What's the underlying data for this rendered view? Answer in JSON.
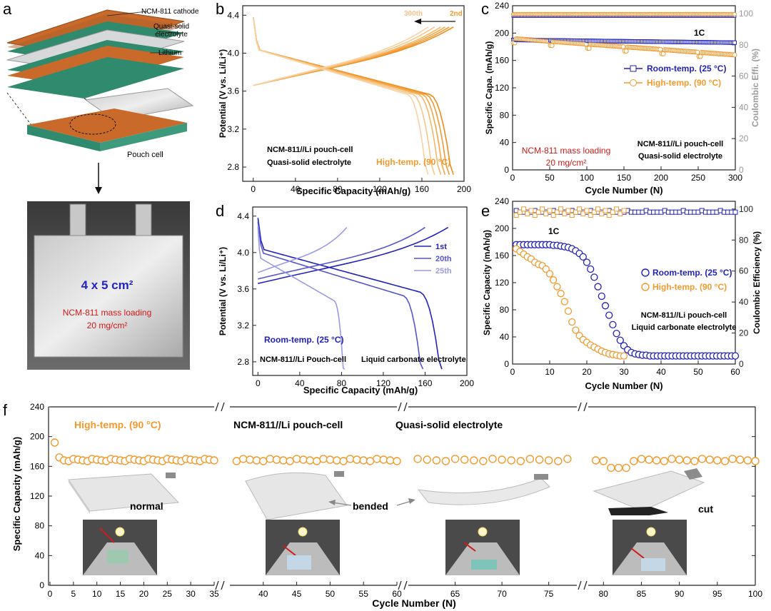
{
  "colors": {
    "orange": "#f39a2e",
    "orange_light": "#f6c28a",
    "blue": "#2222bb",
    "blue_mid": "#5555cc",
    "blue_light": "#9a9ae6",
    "red": "#d11a1a",
    "grey": "#9a9a9a",
    "axis": "#222222"
  },
  "panel_a": {
    "letter": "a",
    "layers": [
      "NCM-811 cathode",
      "Quasi-solid electrolyte",
      "Lithium"
    ],
    "pouch_label": "Pouch cell",
    "photo_size": "4 x 5 cm²",
    "photo_loading_1": "NCM-811 mass loading",
    "photo_loading_2": "20 mg/cm²"
  },
  "panel_f_text": {
    "states": [
      "normal",
      "bended",
      "cut"
    ]
  },
  "chart_data": [
    {
      "id": "b",
      "letter": "b",
      "type": "line",
      "title": "",
      "xlabel": "Specific Capacity (mAh/g)",
      "ylabel": "Potential (V vs. Li/Li⁺)",
      "xlim": [
        -10,
        200
      ],
      "ylim": [
        2.65,
        4.5
      ],
      "xticks": [
        0,
        40,
        80,
        120,
        160,
        200
      ],
      "yticks": [
        2.8,
        3.2,
        3.6,
        4.0,
        4.4
      ],
      "legend": [
        "300th",
        "2nd"
      ],
      "annotations": [
        "NCM-811//Li pouch-cell",
        "Quasi-solid electrolyte",
        "High-temp. (90 °C)"
      ],
      "series": [
        {
          "name": "2nd",
          "charge_capacity": 190,
          "discharge_capacity": 190
        },
        {
          "name": "cycle",
          "charge_capacity": 186,
          "discharge_capacity": 186
        },
        {
          "name": "cycle",
          "charge_capacity": 182,
          "discharge_capacity": 182
        },
        {
          "name": "cycle",
          "charge_capacity": 178,
          "discharge_capacity": 178
        },
        {
          "name": "cycle",
          "charge_capacity": 172,
          "discharge_capacity": 172
        },
        {
          "name": "300th",
          "charge_capacity": 166,
          "discharge_capacity": 166
        }
      ]
    },
    {
      "id": "c",
      "letter": "c",
      "type": "scatter",
      "xlabel": "Cycle Number (N)",
      "ylabel": "Specific Capa. (mAh/g)",
      "y2label": "Coulombic Effi. (%)",
      "xlim": [
        0,
        300
      ],
      "ylim": [
        0,
        240
      ],
      "y2lim": [
        0,
        105
      ],
      "xticks": [
        0,
        50,
        100,
        150,
        200,
        250,
        300
      ],
      "yticks": [
        0,
        40,
        80,
        120,
        160,
        200,
        240
      ],
      "y2ticks": [
        0,
        20,
        40,
        60,
        80,
        100
      ],
      "rate_label": "1C",
      "legend": [
        "Room-temp. (25 °C)",
        "High-temp. (90 °C)"
      ],
      "annotations": [
        "NCM-811 mass loading",
        "20 mg/cm²",
        "NCM-811//Li pouch-cell",
        "Quasi-solid electrolyte"
      ],
      "series": [
        {
          "name": "Room-temp. capacity",
          "start": 190,
          "end": 186
        },
        {
          "name": "High-temp. capacity",
          "start": 192,
          "end": 168
        },
        {
          "name": "Room-temp. CE",
          "value": 98.5
        },
        {
          "name": "High-temp. CE",
          "value": 99.5
        }
      ]
    },
    {
      "id": "d",
      "letter": "d",
      "type": "line",
      "xlabel": "Specific Capacity (mAh/g)",
      "ylabel": "Potential (V vs. Li/Li⁺)",
      "xlim": [
        -5,
        200
      ],
      "ylim": [
        2.65,
        4.5
      ],
      "xticks": [
        0,
        40,
        80,
        120,
        160,
        200
      ],
      "yticks": [
        2.8,
        3.2,
        3.6,
        4.0,
        4.4
      ],
      "legend": [
        "1st",
        "20th",
        "25th"
      ],
      "annotations": [
        "Room-temp. (25 °C)",
        "NCM-811//Li Pouch-cell",
        "Liquid carbonate electrolyte"
      ],
      "series": [
        {
          "name": "1st",
          "charge_capacity": 182,
          "discharge_capacity": 176
        },
        {
          "name": "20th",
          "charge_capacity": 160,
          "discharge_capacity": 158
        },
        {
          "name": "25th",
          "charge_capacity": 85,
          "discharge_capacity": 83
        }
      ]
    },
    {
      "id": "e",
      "letter": "e",
      "type": "scatter",
      "xlabel": "Cycle Number (N)",
      "ylabel": "Specific Capacity (mAh/g)",
      "y2label": "Coulombic Efficiency (%)",
      "xlim": [
        0,
        60
      ],
      "ylim": [
        0,
        240
      ],
      "y2lim": [
        0,
        105
      ],
      "xticks": [
        0,
        10,
        20,
        30,
        40,
        50,
        60
      ],
      "yticks": [
        0,
        40,
        80,
        120,
        160,
        200,
        240
      ],
      "y2ticks": [
        0,
        20,
        40,
        60,
        80,
        100
      ],
      "rate_label": "1C",
      "legend": [
        "Room-temp. (25 °C)",
        "High-temp. (90 °C)"
      ],
      "annotations": [
        "NCM-811//Li pouch-cell",
        "Liquid carbonate electrolyte"
      ],
      "series": [
        {
          "name": "Room-temp. capacity",
          "x": [
            1,
            2,
            3,
            4,
            5,
            6,
            7,
            8,
            9,
            10,
            11,
            12,
            13,
            14,
            15,
            16,
            17,
            18,
            19,
            20,
            21,
            22,
            23,
            24,
            25,
            26,
            27,
            28,
            29,
            30,
            31,
            32,
            33,
            34,
            35,
            36,
            37,
            38,
            39,
            40,
            41,
            42,
            43,
            44,
            45,
            46,
            47,
            48,
            49,
            50,
            51,
            52,
            53,
            54,
            55,
            56,
            57,
            58,
            59,
            60
          ],
          "values": [
            176,
            176,
            176,
            176,
            176,
            176,
            176,
            176,
            176,
            176,
            175,
            175,
            174,
            173,
            172,
            170,
            167,
            163,
            158,
            150,
            140,
            128,
            114,
            100,
            86,
            72,
            58,
            45,
            35,
            27,
            21,
            17,
            15,
            14,
            13,
            13,
            12,
            12,
            12,
            12,
            12,
            12,
            12,
            12,
            12,
            12,
            12,
            12,
            12,
            12,
            12,
            12,
            12,
            12,
            12,
            12,
            12,
            12,
            12,
            12
          ]
        },
        {
          "name": "High-temp. capacity",
          "x": [
            1,
            2,
            3,
            4,
            5,
            6,
            7,
            8,
            9,
            10,
            11,
            12,
            13,
            14,
            15,
            16,
            17,
            18,
            19,
            20,
            21,
            22,
            23,
            24,
            25,
            26,
            27,
            28,
            29,
            30
          ],
          "values": [
            170,
            166,
            162,
            158,
            155,
            150,
            147,
            145,
            140,
            133,
            124,
            114,
            104,
            92,
            78,
            62,
            50,
            42,
            36,
            32,
            28,
            25,
            22,
            19,
            17,
            15,
            14,
            13,
            12,
            12
          ]
        },
        {
          "name": "Room-temp. CE",
          "value": 98
        },
        {
          "name": "High-temp. CE",
          "value": 98
        }
      ]
    },
    {
      "id": "f",
      "letter": "f",
      "type": "line",
      "xlabel": "Cycle Number (N)",
      "ylabel": "Specific Capacity (mAh/g)",
      "ylim": [
        0,
        240
      ],
      "yticks": [
        0,
        40,
        80,
        120,
        160,
        200,
        240
      ],
      "segments": [
        {
          "xlim": [
            0,
            35
          ],
          "xticks": [
            0,
            5,
            10,
            15,
            20,
            25,
            30,
            35
          ]
        },
        {
          "xlim": [
            35,
            60
          ],
          "xticks": [
            40,
            45,
            50,
            55,
            60
          ]
        },
        {
          "xlim": [
            60,
            78
          ],
          "xticks": [
            65,
            70,
            75
          ]
        },
        {
          "xlim": [
            78,
            100
          ],
          "xticks": [
            80,
            85,
            90,
            95,
            100
          ]
        }
      ],
      "annotations": [
        "High-temp. (90 °C)",
        "NCM-811//Li pouch-cell",
        "Quasi-solid electrolyte"
      ],
      "series": [
        {
          "name": "Specific capacity",
          "values_first": [
            192,
            172
          ],
          "plateau": 168
        }
      ]
    }
  ]
}
